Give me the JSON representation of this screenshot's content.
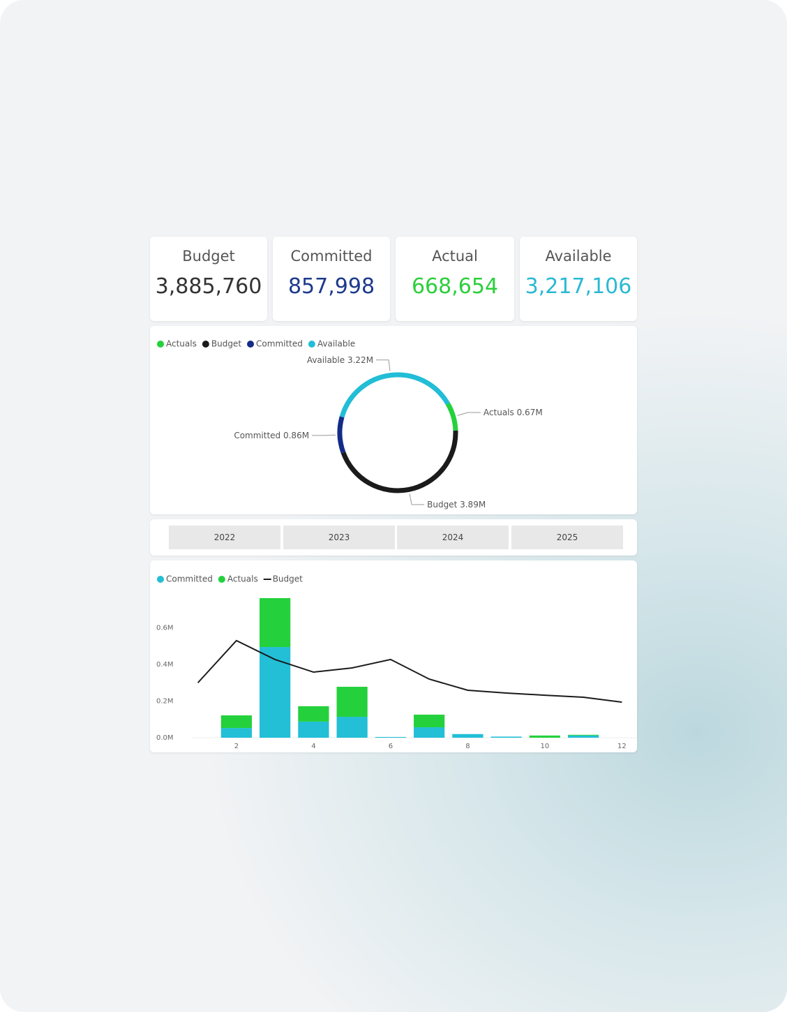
{
  "kpis": [
    {
      "label": "Budget",
      "value": "3,885,760"
    },
    {
      "label": "Committed",
      "value": "857,998"
    },
    {
      "label": "Actual",
      "value": "668,654"
    },
    {
      "label": "Available",
      "value": "3,217,106"
    }
  ],
  "slicer": [
    "2022",
    "2023",
    "2024",
    "2025"
  ],
  "chart_data": [
    {
      "type": "donut",
      "categories": [
        "Actuals",
        "Budget",
        "Committed",
        "Available"
      ],
      "values": [
        0.67,
        3.89,
        0.86,
        3.22
      ],
      "value_labels": [
        "0.67M",
        "3.89M",
        "0.86M",
        "3.22M"
      ],
      "colors": [
        "#24d13c",
        "#1b1b1b",
        "#142c88",
        "#22bdd6"
      ],
      "start_angle": 60
    },
    {
      "type": "combo",
      "stacked": true,
      "x": [
        1,
        2,
        3,
        4,
        5,
        6,
        7,
        8,
        9,
        10,
        11,
        12
      ],
      "series": [
        {
          "name": "Committed",
          "type": "bar",
          "color": "#22bfd6",
          "values": [
            0,
            0.053,
            0.495,
            0.088,
            0.114,
            0.004,
            0.057,
            0.02,
            0.006,
            0,
            0.012,
            0
          ]
        },
        {
          "name": "Actuals",
          "type": "bar",
          "color": "#24d13c",
          "values": [
            0,
            0.069,
            0.267,
            0.084,
            0.164,
            0,
            0.069,
            0,
            0,
            0.012,
            0.004,
            0
          ]
        },
        {
          "name": "Budget",
          "type": "line",
          "color": "#1b1b1b",
          "values": [
            0.3,
            0.53,
            0.427,
            0.358,
            0.381,
            0.427,
            0.32,
            0.259,
            0.244,
            0.232,
            0.221,
            0.194
          ]
        }
      ],
      "xlim": [
        0.5,
        12.5
      ],
      "xticks": [
        2,
        4,
        6,
        8,
        10,
        12
      ],
      "ylim": [
        0,
        0.8
      ],
      "yticks": [
        {
          "value": 0,
          "label": "0.0M"
        },
        {
          "value": 0.2,
          "label": "0.2M"
        },
        {
          "value": 0.4,
          "label": "0.4M"
        },
        {
          "value": 0.6,
          "label": "0.6M"
        }
      ]
    }
  ]
}
